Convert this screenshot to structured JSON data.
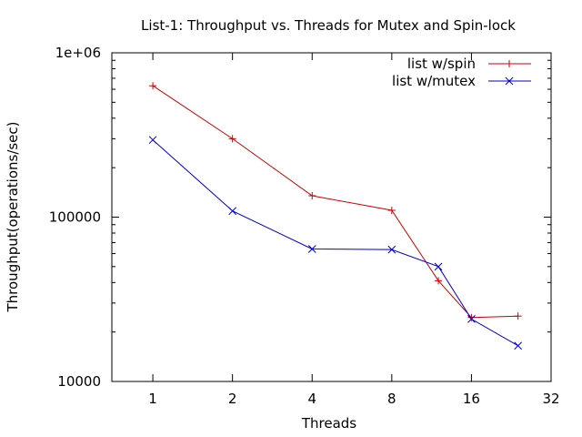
{
  "chart_data": {
    "type": "line",
    "title": "List-1: Throughput vs. Threads for Mutex and Spin-lock",
    "xlabel": "Threads",
    "ylabel": "Throughput(operations/sec)",
    "x_scale": "log2",
    "y_scale": "log10",
    "xlim": [
      0.7,
      32
    ],
    "ylim": [
      10000,
      1000000
    ],
    "x_ticks": [
      1,
      2,
      4,
      8,
      16,
      32
    ],
    "x_tick_labels": [
      "1",
      "2",
      "4",
      "8",
      "16",
      "32"
    ],
    "y_ticks": [
      10000,
      100000,
      1000000
    ],
    "y_tick_labels": [
      "10000",
      "100000",
      "1e+06"
    ],
    "legend_position": "top-right",
    "grid": false,
    "series": [
      {
        "name": "list w/spin",
        "color": "#cc0000",
        "marker": "plus",
        "x": [
          1,
          2,
          4,
          8,
          12,
          16,
          24
        ],
        "y": [
          630000,
          300000,
          135000,
          110000,
          41000,
          24500,
          25000
        ]
      },
      {
        "name": "list w/mutex",
        "color": "#0000cc",
        "marker": "cross",
        "x": [
          1,
          2,
          4,
          8,
          12,
          16,
          24
        ],
        "y": [
          295000,
          109000,
          64000,
          63500,
          50000,
          24000,
          16500
        ]
      }
    ]
  }
}
